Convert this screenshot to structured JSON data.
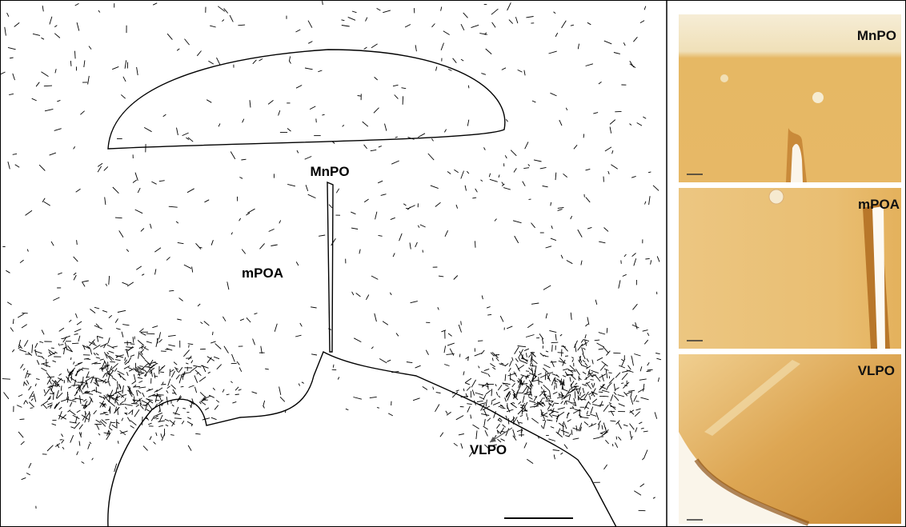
{
  "left": {
    "labels": [
      "MnPO",
      "mPOA",
      "VLPO"
    ]
  },
  "right": {
    "panels": [
      "MnPO",
      "mPOA",
      "VLPO"
    ]
  }
}
